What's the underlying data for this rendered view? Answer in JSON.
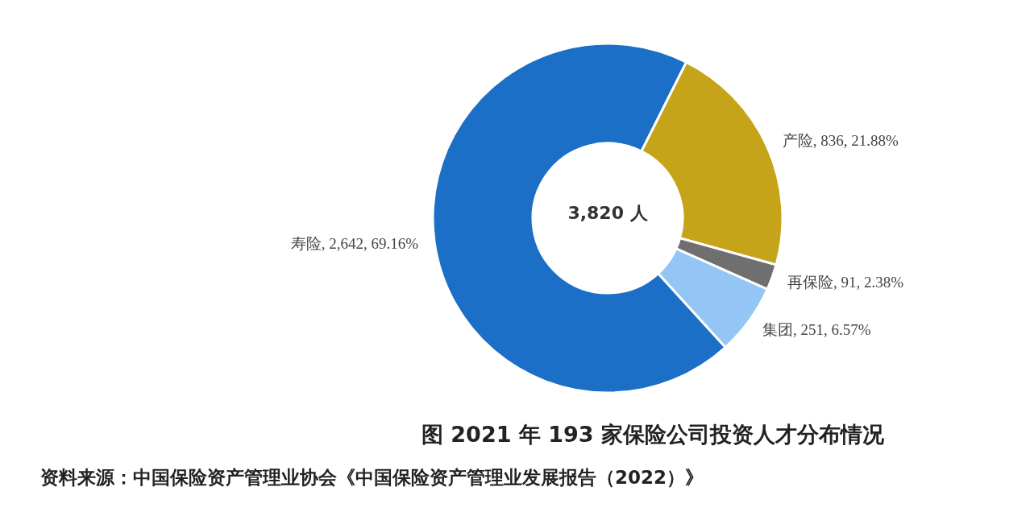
{
  "chart_data": {
    "type": "donut",
    "title": "图  2021 年 193 家保险公司投资人才分布情况",
    "categories": [
      "产险",
      "再保险",
      "集团",
      "寿险"
    ],
    "values": [
      836,
      91,
      251,
      2642
    ],
    "value_labels": [
      "836, 21.88%",
      "91, 2.38%",
      "251, 6.57%",
      "2,642, 69.16%"
    ],
    "colors": [
      "#c6a419",
      "#6f6f6f",
      "#94c6f5",
      "#1c6fc6"
    ],
    "annotations": [
      "3,820 人",
      "资料来源：中国保险资产管理业协会《中国保险资产管理业发展报告（2022）》"
    ]
  }
}
